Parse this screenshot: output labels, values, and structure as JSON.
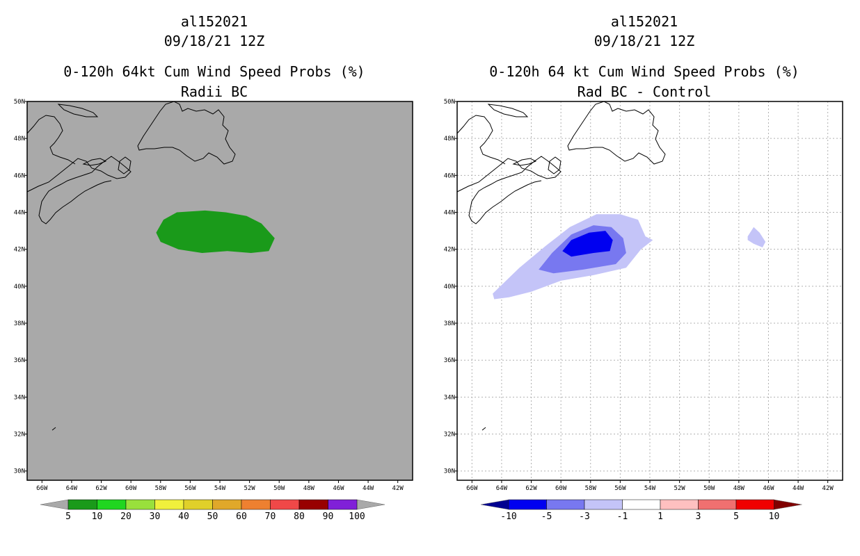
{
  "chart_data": [
    {
      "type": "heatmap",
      "storm_id": "al152021",
      "date": "09/18/21 12Z",
      "title": "0-120h 64kt Cum Wind Speed Probs (%)",
      "subtitle": "Radii BC",
      "xlim": [
        -67,
        -41
      ],
      "ylim": [
        29.5,
        50
      ],
      "x_ticks": [
        -66,
        -64,
        -62,
        -60,
        -58,
        -56,
        -54,
        -52,
        -50,
        -48,
        -46,
        -44,
        -42
      ],
      "y_ticks": [
        30,
        32,
        34,
        36,
        38,
        40,
        42,
        44,
        46,
        48,
        50
      ],
      "x_tick_labels": [
        "66W",
        "64W",
        "62W",
        "60W",
        "58W",
        "56W",
        "54W",
        "52W",
        "50W",
        "48W",
        "46W",
        "44W",
        "42W"
      ],
      "y_tick_labels": [
        "30N",
        "32N",
        "34N",
        "36N",
        "38N",
        "40N",
        "42N",
        "44N",
        "46N",
        "48N",
        "50N"
      ],
      "background_color": "#a9a9a9",
      "grid": false,
      "contours": [
        {
          "level": "5-10%",
          "color": "#1a9a1a",
          "lonlat": [
            [
              -58.3,
              42.9
            ],
            [
              -57.8,
              43.6
            ],
            [
              -56.9,
              44.0
            ],
            [
              -55.0,
              44.1
            ],
            [
              -53.6,
              44.0
            ],
            [
              -52.2,
              43.8
            ],
            [
              -51.2,
              43.4
            ],
            [
              -50.3,
              42.6
            ],
            [
              -50.7,
              41.9
            ],
            [
              -51.9,
              41.8
            ],
            [
              -53.5,
              41.9
            ],
            [
              -55.2,
              41.8
            ],
            [
              -56.8,
              42.0
            ],
            [
              -58.0,
              42.4
            ]
          ]
        }
      ],
      "colorbar": {
        "labels": [
          "5",
          "10",
          "20",
          "30",
          "40",
          "50",
          "60",
          "70",
          "80",
          "90",
          "100"
        ],
        "colors": [
          "#1a9a1a",
          "#20d620",
          "#99e03c",
          "#f0f03c",
          "#e0d02a",
          "#e0a82a",
          "#ee8030",
          "#f04848",
          "#980000",
          "#8020d8"
        ],
        "end_colors": [
          "#a9a9a9",
          "#a9a9a9"
        ]
      }
    },
    {
      "type": "heatmap",
      "storm_id": "al152021",
      "date": "09/18/21 12Z",
      "title": "0-120h 64 kt Cum Wind Speed Probs (%)",
      "subtitle": "Rad BC - Control",
      "xlim": [
        -67,
        -41
      ],
      "ylim": [
        29.5,
        50
      ],
      "x_ticks": [
        -66,
        -64,
        -62,
        -60,
        -58,
        -56,
        -54,
        -52,
        -50,
        -48,
        -46,
        -44,
        -42
      ],
      "y_ticks": [
        30,
        32,
        34,
        36,
        38,
        40,
        42,
        44,
        46,
        48,
        50
      ],
      "x_tick_labels": [
        "66W",
        "64W",
        "62W",
        "60W",
        "58W",
        "56W",
        "54W",
        "52W",
        "50W",
        "48W",
        "46W",
        "44W",
        "42W"
      ],
      "y_tick_labels": [
        "30N",
        "32N",
        "34N",
        "36N",
        "38N",
        "40N",
        "42N",
        "44N",
        "46N",
        "48N",
        "50N"
      ],
      "background_color": "#ffffff",
      "grid": true,
      "contours": [
        {
          "level": "-3 to -1",
          "color": "#c4c4f8",
          "lonlat": [
            [
              -64.6,
              39.6
            ],
            [
              -62.8,
              41.0
            ],
            [
              -61.0,
              42.2
            ],
            [
              -59.4,
              43.2
            ],
            [
              -57.6,
              43.9
            ],
            [
              -56.0,
              43.9
            ],
            [
              -54.8,
              43.6
            ],
            [
              -54.3,
              42.7
            ],
            [
              -53.8,
              42.5
            ],
            [
              -54.6,
              42.0
            ],
            [
              -55.6,
              41.0
            ],
            [
              -57.8,
              40.6
            ],
            [
              -60.0,
              40.3
            ],
            [
              -62.0,
              39.7
            ],
            [
              -63.5,
              39.4
            ],
            [
              -64.5,
              39.3
            ]
          ]
        },
        {
          "level": "-3 to -1",
          "color": "#c4c4f8",
          "lonlat": [
            [
              -47.4,
              42.7
            ],
            [
              -47.0,
              43.2
            ],
            [
              -46.6,
              42.9
            ],
            [
              -46.2,
              42.4
            ],
            [
              -46.4,
              42.1
            ],
            [
              -47.0,
              42.3
            ],
            [
              -47.4,
              42.5
            ]
          ]
        },
        {
          "level": "-5 to -3",
          "color": "#7878f0",
          "lonlat": [
            [
              -61.5,
              40.9
            ],
            [
              -60.6,
              41.8
            ],
            [
              -59.3,
              42.8
            ],
            [
              -57.8,
              43.3
            ],
            [
              -56.6,
              43.2
            ],
            [
              -55.8,
              42.6
            ],
            [
              -55.6,
              41.8
            ],
            [
              -56.3,
              41.2
            ],
            [
              -58.5,
              40.9
            ],
            [
              -60.5,
              40.7
            ]
          ]
        },
        {
          "level": "-10 to -5",
          "color": "#0000f0",
          "lonlat": [
            [
              -59.9,
              41.9
            ],
            [
              -59.3,
              42.5
            ],
            [
              -58.1,
              42.9
            ],
            [
              -57.0,
              43.0
            ],
            [
              -56.5,
              42.5
            ],
            [
              -56.7,
              41.9
            ],
            [
              -57.8,
              41.8
            ],
            [
              -59.3,
              41.6
            ]
          ]
        }
      ],
      "colorbar": {
        "labels": [
          "-10",
          "-5",
          "-3",
          "-1",
          "1",
          "3",
          "5",
          "10"
        ],
        "colors": [
          "#0000f0",
          "#7878f0",
          "#c4c4f8",
          "#ffffff",
          "#ffc0c0",
          "#f07070",
          "#f00000"
        ],
        "end_colors": [
          "#000090",
          "#800000"
        ]
      }
    }
  ],
  "coast_color": "#000000"
}
